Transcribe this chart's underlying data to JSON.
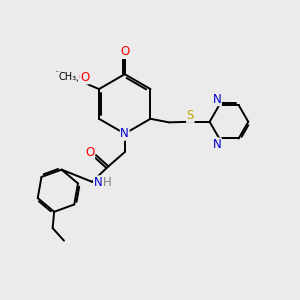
{
  "bg_color": "#ebebeb",
  "atom_colors": {
    "C": "#000000",
    "N": "#0000cc",
    "O": "#ff0000",
    "S": "#bbaa00",
    "H": "#808080"
  },
  "font_size": 8.5,
  "line_width": 1.4
}
